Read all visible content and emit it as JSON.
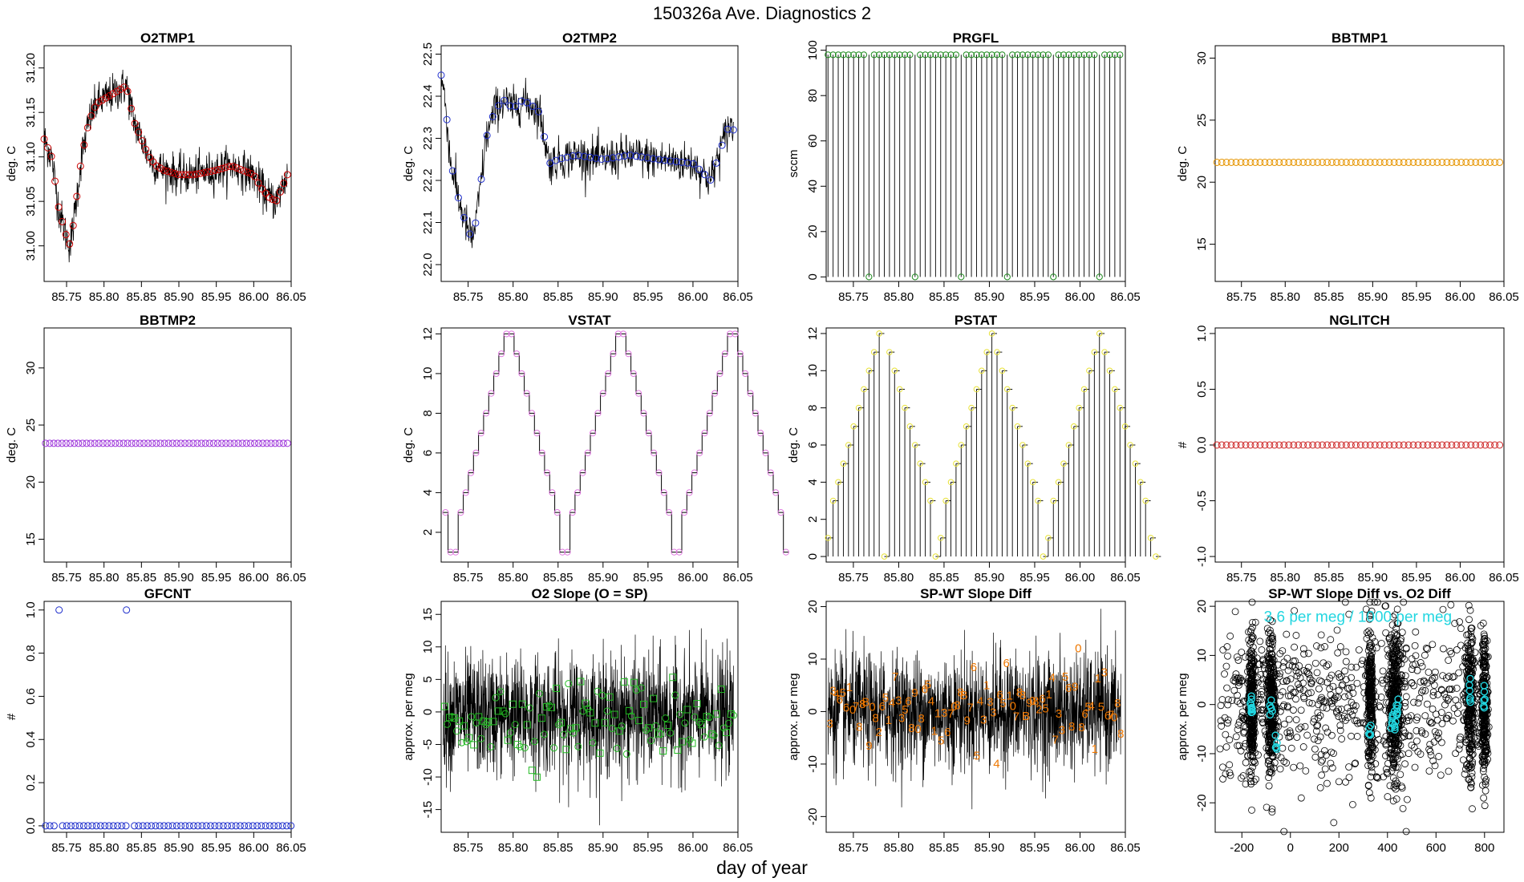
{
  "figure": {
    "title": "150326a   Ave. Diagnostics 2",
    "xlabel": "day of year"
  },
  "chart_data": [
    {
      "id": "o2tmp1",
      "type": "line",
      "title": "O2TMP1",
      "ylabel": "deg. C",
      "xlim": [
        85.72,
        86.05
      ],
      "ylim": [
        30.96,
        31.225
      ],
      "xticks": [
        85.75,
        85.8,
        85.85,
        85.9,
        85.95,
        86.0,
        86.05
      ],
      "yticks": [
        31.0,
        31.05,
        31.1,
        31.15,
        31.2
      ],
      "ydec": 2,
      "trace": {
        "style": "noisy",
        "noise": 0.018,
        "color": "#000000"
      },
      "markers": {
        "shape": "circle",
        "color": "#cc0000",
        "count": 68
      },
      "x": [
        85.72,
        85.73,
        85.74,
        85.75,
        85.755,
        85.76,
        85.77,
        85.78,
        85.79,
        85.8,
        85.81,
        85.82,
        85.83,
        85.84,
        85.85,
        85.86,
        85.87,
        85.88,
        85.9,
        85.92,
        85.95,
        85.97,
        86.0,
        86.01,
        86.02,
        86.03,
        86.04,
        86.045
      ],
      "y": [
        31.12,
        31.1,
        31.04,
        31.01,
        31.0,
        31.03,
        31.1,
        31.14,
        31.16,
        31.165,
        31.17,
        31.175,
        31.18,
        31.14,
        31.12,
        31.1,
        31.09,
        31.085,
        31.08,
        31.08,
        31.085,
        31.09,
        31.08,
        31.065,
        31.055,
        31.05,
        31.07,
        31.08
      ]
    },
    {
      "id": "o2tmp2",
      "type": "line",
      "title": "O2TMP2",
      "ylabel": "deg. C",
      "xlim": [
        85.72,
        86.05
      ],
      "ylim": [
        21.96,
        22.52
      ],
      "xticks": [
        85.75,
        85.8,
        85.85,
        85.9,
        85.95,
        86.0,
        86.05
      ],
      "yticks": [
        22.0,
        22.1,
        22.2,
        22.3,
        22.4,
        22.5
      ],
      "ydec": 1,
      "trace": {
        "style": "noisy",
        "noise": 0.04,
        "color": "#000000"
      },
      "markers": {
        "shape": "circle",
        "color": "#1f2fcc",
        "count": 52
      },
      "x": [
        85.72,
        85.725,
        85.73,
        85.74,
        85.75,
        85.755,
        85.76,
        85.77,
        85.78,
        85.79,
        85.8,
        85.81,
        85.82,
        85.83,
        85.84,
        85.85,
        85.87,
        85.9,
        85.93,
        85.96,
        86.0,
        86.02,
        86.03,
        86.04,
        86.045
      ],
      "y": [
        22.45,
        22.38,
        22.25,
        22.15,
        22.08,
        22.06,
        22.12,
        22.3,
        22.37,
        22.39,
        22.37,
        22.39,
        22.38,
        22.36,
        22.24,
        22.25,
        22.26,
        22.25,
        22.26,
        22.25,
        22.24,
        22.2,
        22.27,
        22.33,
        22.32
      ]
    },
    {
      "id": "prgfl",
      "type": "spikes",
      "title": "PRGFL",
      "ylabel": "sccm",
      "xlim": [
        85.72,
        86.05
      ],
      "ylim": [
        -2,
        102
      ],
      "xticks": [
        85.75,
        85.8,
        85.85,
        85.9,
        85.95,
        86.0,
        86.05
      ],
      "yticks": [
        0,
        20,
        40,
        60,
        80,
        100
      ],
      "ydec": 0,
      "trace": {
        "color": "#000000"
      },
      "markers": {
        "shape": "circle",
        "color": "#1f8a1f"
      },
      "spike_x_start": 85.722,
      "spike_dx": 0.00565,
      "high": 98,
      "low_every": 9,
      "low_offset": 8,
      "low": 0
    },
    {
      "id": "bbtmp1",
      "type": "flat",
      "title": "BBTMP1",
      "ylabel": "deg. C",
      "xlim": [
        85.72,
        86.05
      ],
      "ylim": [
        12,
        31
      ],
      "xticks": [
        85.75,
        85.8,
        85.85,
        85.9,
        85.95,
        86.0,
        86.05
      ],
      "yticks": [
        15,
        20,
        25,
        30
      ],
      "ydec": 0,
      "markers": {
        "shape": "circle",
        "color": "#e69500",
        "count": 60
      },
      "value": 21.6
    },
    {
      "id": "bbtmp2",
      "type": "flat",
      "title": "BBTMP2",
      "ylabel": "deg. C",
      "xlim": [
        85.72,
        86.05
      ],
      "ylim": [
        13,
        33.5
      ],
      "xticks": [
        85.75,
        85.8,
        85.85,
        85.9,
        85.95,
        86.0,
        86.05
      ],
      "yticks": [
        15,
        20,
        25,
        30
      ],
      "ydec": 0,
      "markers": {
        "shape": "circle",
        "color": "#9b30d9",
        "count": 60
      },
      "value": 23.4
    },
    {
      "id": "vstat",
      "type": "step",
      "title": "VSTAT",
      "ylabel": "deg. C",
      "xlim": [
        85.72,
        86.05
      ],
      "ylim": [
        0.5,
        12.3
      ],
      "xticks": [
        85.75,
        85.8,
        85.85,
        85.9,
        85.95,
        86.0,
        86.05
      ],
      "yticks": [
        2,
        4,
        6,
        8,
        10,
        12
      ],
      "ydec": 0,
      "trace": {
        "color": "#000000"
      },
      "markers": {
        "shape": "circle",
        "color": "#e07ae0"
      },
      "dx": 0.00565,
      "x_start": 85.722,
      "y": [
        3,
        1,
        1,
        3,
        4,
        5,
        6,
        7,
        8,
        9,
        10,
        11,
        12,
        12,
        11,
        10,
        9,
        8,
        7,
        6,
        5,
        4,
        3,
        1,
        1,
        3,
        4,
        5,
        6,
        7,
        8,
        9,
        10,
        11,
        12,
        12,
        11,
        10,
        9,
        8,
        7,
        6,
        5,
        4,
        3,
        1,
        1,
        3,
        4,
        5,
        6,
        7,
        8,
        9,
        10,
        11,
        12,
        12,
        11,
        10,
        9,
        8,
        7,
        6,
        5,
        4,
        3,
        1
      ]
    },
    {
      "id": "pstat",
      "type": "spikestep",
      "title": "PSTAT",
      "ylabel": "deg. C",
      "xlim": [
        85.72,
        86.05
      ],
      "ylim": [
        -0.3,
        12.3
      ],
      "xticks": [
        85.75,
        85.8,
        85.85,
        85.9,
        85.95,
        86.0,
        86.05
      ],
      "yticks": [
        0,
        2,
        4,
        6,
        8,
        10,
        12
      ],
      "ydec": 0,
      "trace": {
        "color": "#000000"
      },
      "markers": {
        "shape": "circle",
        "color": "#e8e23a"
      },
      "dx": 0.00565,
      "x_start": 85.722,
      "y": [
        1,
        3,
        4,
        5,
        6,
        7,
        8,
        9,
        10,
        11,
        12,
        0,
        11,
        10,
        9,
        8,
        7,
        6,
        5,
        4,
        3,
        0,
        1,
        3,
        4,
        5,
        6,
        7,
        8,
        9,
        10,
        11,
        12,
        11,
        10,
        9,
        8,
        7,
        6,
        5,
        4,
        3,
        0,
        1,
        3,
        4,
        5,
        6,
        7,
        8,
        9,
        10,
        11,
        12,
        11,
        10,
        9,
        8,
        7,
        6,
        5,
        4,
        3,
        1,
        0
      ]
    },
    {
      "id": "nglitch",
      "type": "flat",
      "title": "NGLITCH",
      "ylabel": "#",
      "xlim": [
        85.72,
        86.05
      ],
      "ylim": [
        -1.05,
        1.05
      ],
      "xticks": [
        85.75,
        85.8,
        85.85,
        85.9,
        85.95,
        86.0,
        86.05
      ],
      "yticks": [
        -1.0,
        -0.5,
        0.0,
        0.5,
        1.0
      ],
      "ydec": 1,
      "markers": {
        "shape": "circle",
        "color": "#cc2020",
        "count": 60
      },
      "value": 0
    },
    {
      "id": "gfcnt",
      "type": "points",
      "title": "GFCNT",
      "ylabel": "#",
      "xlim": [
        85.72,
        86.05
      ],
      "ylim": [
        -0.03,
        1.04
      ],
      "xticks": [
        85.75,
        85.8,
        85.85,
        85.9,
        85.95,
        86.0,
        86.05
      ],
      "yticks": [
        0.0,
        0.2,
        0.4,
        0.6,
        0.8,
        1.0
      ],
      "ydec": 1,
      "markers": {
        "shape": "circle",
        "color": "#1f2fcc"
      },
      "x_start": 85.722,
      "dx": 0.00565,
      "count": 57,
      "gap_after": 3,
      "gap2_after": 19,
      "ones_x": [
        85.74,
        85.83
      ],
      "value": 0
    },
    {
      "id": "o2slope",
      "type": "noise",
      "title": "O2 Slope (O = SP)",
      "ylabel": "approx. per meg",
      "xlim": [
        85.72,
        86.05
      ],
      "ylim": [
        -18.5,
        17
      ],
      "xticks": [
        85.75,
        85.8,
        85.85,
        85.9,
        85.95,
        86.0,
        86.05
      ],
      "yticks": [
        -15,
        -10,
        -5,
        0,
        5,
        10,
        15
      ],
      "ydec": 0,
      "trace": {
        "color": "#000000",
        "center": -0.5,
        "spread": 4.5
      },
      "markers": {
        "shape": "mixed",
        "color": "#22bb22",
        "count": 120,
        "center": -1,
        "spread": 3
      }
    },
    {
      "id": "spwt",
      "type": "noise",
      "title": "SP-WT Slope Diff",
      "ylabel": "approx. per meg",
      "xlim": [
        85.72,
        86.05
      ],
      "ylim": [
        -23,
        21
      ],
      "xticks": [
        85.75,
        85.8,
        85.85,
        85.9,
        85.95,
        86.0,
        86.05
      ],
      "yticks": [
        -20,
        -10,
        0,
        10,
        20
      ],
      "ydec": 0,
      "trace": {
        "color": "#000000",
        "center": 0,
        "spread": 5.5
      },
      "markers": {
        "shape": "digits",
        "color": "#ee7700",
        "count": 90,
        "center": 0.5,
        "spread": 3.5,
        "digits": [
          "3",
          "3",
          "4",
          "6",
          "5",
          "6",
          "1",
          "0",
          "7",
          "8",
          "8",
          "B",
          "9",
          "0",
          "8",
          "2",
          "6",
          "5",
          "1",
          "4",
          "7",
          "3",
          "3",
          "5",
          "6",
          "8",
          "9",
          "0",
          "8",
          "6",
          "5",
          "4",
          "1",
          "1",
          "5",
          "3",
          "6",
          "7",
          "0",
          "8",
          "8",
          "B",
          "9",
          "7",
          "6",
          "5",
          "4",
          "3",
          "1"
        ]
      }
    },
    {
      "id": "scatter",
      "type": "scatter",
      "title": "SP-WT Slope Diff vs. O2 Diff",
      "ylabel": "approx. per meg",
      "xlim": [
        -310,
        880
      ],
      "ylim": [
        -26,
        21
      ],
      "xticks": [
        -200,
        0,
        200,
        400,
        600,
        800
      ],
      "yticks": [
        -20,
        -10,
        0,
        10,
        20
      ],
      "ydec": 0,
      "markers": {
        "shape": "circle",
        "color": "#000000"
      },
      "clusters": [
        {
          "x": -160,
          "spread": 10,
          "n": 260
        },
        {
          "x": -80,
          "spread": 12,
          "n": 300
        },
        {
          "x": 330,
          "spread": 10,
          "n": 220
        },
        {
          "x": 430,
          "spread": 22,
          "n": 420
        },
        {
          "x": 740,
          "spread": 12,
          "n": 240
        },
        {
          "x": 800,
          "spread": 10,
          "n": 260
        }
      ],
      "background_n": 700,
      "highlight": {
        "color": "#22d6e0",
        "points": [
          [
            -160,
            -1
          ],
          [
            -80,
            0
          ],
          [
            -60,
            -8
          ],
          [
            420,
            -3
          ],
          [
            440,
            -1
          ],
          [
            330,
            -5
          ],
          [
            740,
            2
          ],
          [
            800,
            1
          ],
          [
            -160,
            0
          ],
          [
            430,
            -4
          ]
        ]
      },
      "annotation": "3.6 per meg / 1000 per meg"
    }
  ]
}
